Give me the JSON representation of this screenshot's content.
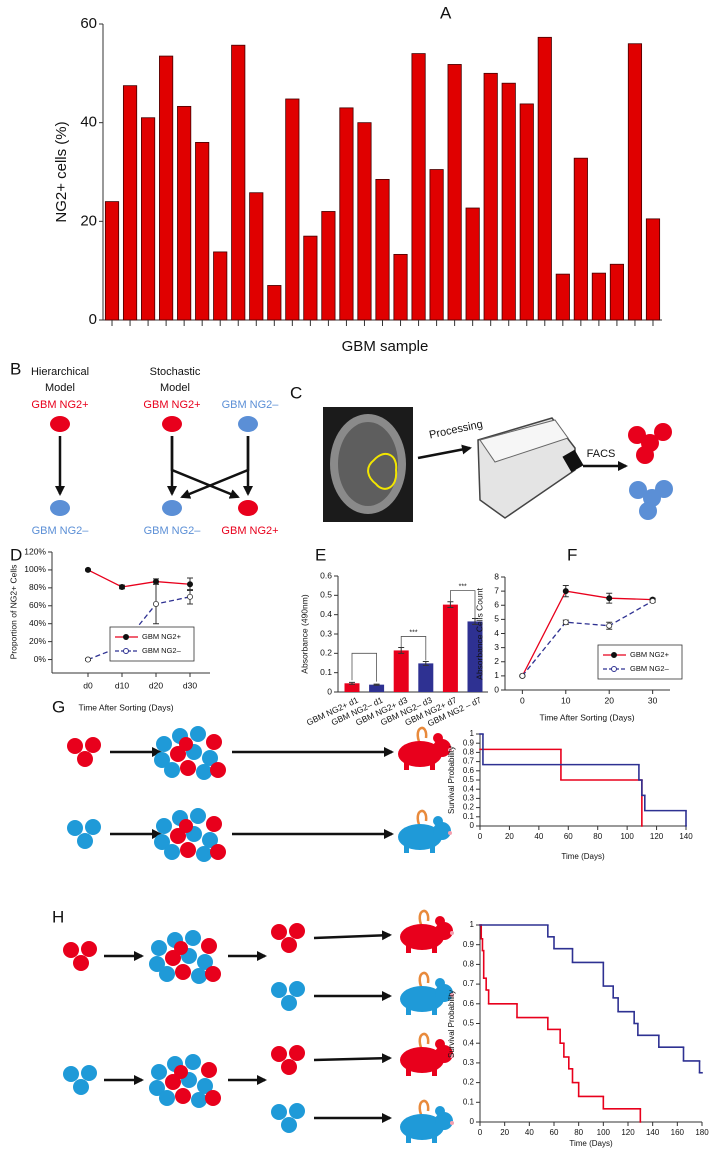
{
  "chart_data": [
    {
      "panel": "A",
      "type": "bar",
      "y_label": "NG2+ cells (%)",
      "x_label": "GBM sample",
      "values": [
        24,
        47.5,
        41,
        53.5,
        43.3,
        36,
        13.8,
        55.7,
        25.8,
        7,
        44.8,
        17,
        22,
        43,
        40,
        28.5,
        13.3,
        54,
        30.5,
        51.8,
        22.7,
        50,
        48,
        43.8,
        57.3,
        9.3,
        32.8,
        9.5,
        11.3,
        56,
        20.5
      ],
      "color": "#e00000",
      "ylim": [
        0,
        60
      ],
      "yticks": [
        0,
        20,
        40,
        60
      ]
    },
    {
      "panel": "D",
      "type": "line",
      "y_label": "Proportion of NG2+ Cells",
      "x_label": "Time After Sorting (Days)",
      "categories": [
        "d0",
        "d10",
        "d20",
        "d30"
      ],
      "ylim": [
        -15,
        120
      ],
      "yticks": [
        {
          "value": 0,
          "label": "0%"
        },
        {
          "value": 20,
          "label": "20%"
        },
        {
          "value": 40,
          "label": "40%"
        },
        {
          "value": 60,
          "label": "60%"
        },
        {
          "value": 80,
          "label": "80%"
        },
        {
          "value": 100,
          "label": "100%"
        },
        {
          "value": 120,
          "label": "120%"
        }
      ],
      "legend": "lower right",
      "series": [
        {
          "name": "GBM NG2+",
          "color": "#e8001c",
          "marker": "filled",
          "dash": false,
          "values": [
            100,
            81,
            87,
            84
          ],
          "errors": [
            1,
            2,
            3,
            7
          ]
        },
        {
          "name": "GBM NG2–",
          "color": "#2e3192",
          "marker": "open",
          "dash": true,
          "values": [
            0,
            15,
            62,
            70
          ],
          "errors": [
            1,
            4,
            22,
            8
          ]
        }
      ]
    },
    {
      "panel": "E",
      "type": "bar",
      "y_label": "Absorbance (490nm)",
      "categories": [
        "GBM NG2+ d1",
        "GBM NG2– d1",
        "GBM NG2+ d3",
        "GBM NG2– d3",
        "GBM NG2+ d7",
        "GBM NG2 – d7"
      ],
      "values": [
        0.045,
        0.038,
        0.215,
        0.148,
        0.452,
        0.365
      ],
      "errors": [
        0.005,
        0.003,
        0.015,
        0.01,
        0.015,
        0.015
      ],
      "colors": [
        "#e8001c",
        "#2e3192",
        "#e8001c",
        "#2e3192",
        "#e8001c",
        "#2e3192"
      ],
      "ylim": [
        0,
        0.6
      ],
      "yticks": [
        0,
        0.1,
        0.2,
        0.3,
        0.4,
        0.5,
        0.6
      ],
      "annotations": [
        "***",
        "***"
      ]
    },
    {
      "panel": "F",
      "type": "line",
      "y_label": "Absorbance Cells Count",
      "x_label": "Time After Sorting (Days)",
      "x": [
        0,
        10,
        20,
        30
      ],
      "xlim": [
        -4,
        34
      ],
      "xticks": [
        0,
        10,
        20,
        30
      ],
      "ylim": [
        0,
        8
      ],
      "yticks": [
        0,
        1,
        2,
        3,
        4,
        5,
        6,
        7,
        8
      ],
      "legend": "lower right",
      "series": [
        {
          "name": "GBM NG2+",
          "color": "#e8001c",
          "marker": "filled",
          "dash": false,
          "values": [
            1,
            7,
            6.5,
            6.4
          ],
          "errors": [
            0.05,
            0.4,
            0.35,
            0.1
          ]
        },
        {
          "name": "GBM NG2–",
          "color": "#2e3192",
          "marker": "open",
          "dash": true,
          "values": [
            1,
            4.8,
            4.55,
            6.3
          ],
          "errors": [
            0.05,
            0.15,
            0.25,
            0.1
          ]
        }
      ]
    },
    {
      "panel": "G",
      "type": "step",
      "y_label": "Survival Probability",
      "x_label": "Time (Days)",
      "xlim": [
        0,
        140
      ],
      "xticks": [
        0,
        20,
        40,
        60,
        80,
        100,
        120,
        140
      ],
      "ylim": [
        0,
        1
      ],
      "yticks": [
        0,
        0.1,
        0.2,
        0.3,
        0.4,
        0.5,
        0.6,
        0.7,
        0.8,
        0.9,
        1
      ],
      "series": [
        {
          "color": "#e8001c",
          "x": [
            0,
            55,
            110
          ],
          "values": [
            0.833,
            0.5,
            0
          ]
        },
        {
          "color": "#2e3192",
          "x": [
            0,
            2,
            108,
            110,
            112,
            140
          ],
          "values": [
            1,
            0.667,
            0.5,
            0.333,
            0.167,
            0
          ]
        }
      ]
    },
    {
      "panel": "H",
      "type": "step",
      "y_label": "Survival Probability",
      "x_label": "Time (Days)",
      "xlim": [
        0,
        180
      ],
      "xticks": [
        0,
        20,
        40,
        60,
        80,
        100,
        120,
        140,
        160,
        180
      ],
      "ylim": [
        0,
        1
      ],
      "yticks": [
        0,
        0.1,
        0.2,
        0.3,
        0.4,
        0.5,
        0.6,
        0.7,
        0.8,
        0.9,
        1
      ],
      "series": [
        {
          "color": "#e8001c",
          "x": [
            0,
            1,
            2,
            3,
            5,
            7,
            30,
            55,
            65,
            68,
            72,
            75,
            80,
            100,
            130
          ],
          "values": [
            1,
            0.93,
            0.87,
            0.73,
            0.67,
            0.6,
            0.53,
            0.47,
            0.4,
            0.33,
            0.27,
            0.2,
            0.13,
            0.067,
            0
          ]
        },
        {
          "color": "#2e3192",
          "x": [
            0,
            55,
            60,
            75,
            100,
            108,
            112,
            125,
            128,
            145,
            165,
            178
          ],
          "values": [
            1,
            0.94,
            0.88,
            0.81,
            0.69,
            0.63,
            0.56,
            0.5,
            0.44,
            0.38,
            0.31,
            0.25
          ]
        }
      ]
    }
  ],
  "diagram": {
    "B": {
      "panel": "B",
      "hierarchical": {
        "title": [
          "Hierarchical",
          "Model"
        ],
        "top": "GBM NG2+",
        "bottom": "GBM NG2–"
      },
      "stochastic": {
        "title": [
          "Stochastic",
          "Model"
        ],
        "top_left": "GBM NG2+",
        "top_right": "GBM NG2–",
        "bottom_left": "GBM NG2–",
        "bottom_right": "GBM NG2+"
      }
    },
    "C": {
      "panel": "C",
      "steps": [
        "Processing",
        "FACS"
      ]
    }
  }
}
